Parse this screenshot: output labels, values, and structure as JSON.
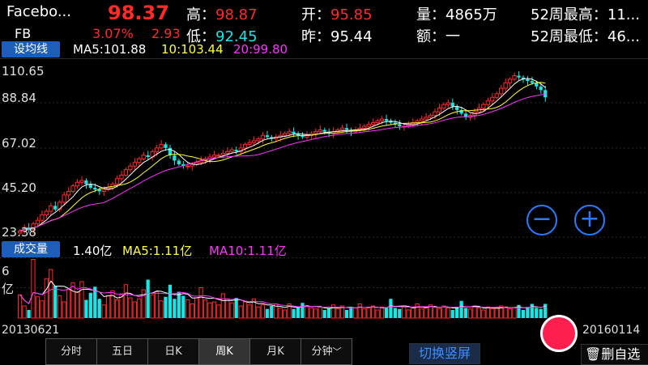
{
  "header": {
    "name": "Facebo...",
    "code": "FB",
    "price": "98.37",
    "change_pct": "3.07%",
    "change": "2.93",
    "high_label": "高：",
    "high": "98.87",
    "low_label": "低：",
    "low": "92.45",
    "open_label": "开：",
    "open": "95.85",
    "prev_label": "昨：",
    "prev": "95.44",
    "vol_label": "量：",
    "vol": "4865万",
    "amt_label": "额：",
    "amt": "一",
    "w52h_label": "52周最高：",
    "w52h": "11...",
    "w52l_label": "52周最低：",
    "w52l": "46..."
  },
  "ma_bar": {
    "button": "设均线",
    "ma5": "MA5:101.88",
    "ma10": "10:103.44",
    "ma20": "20:99.80"
  },
  "vol_bar": {
    "button": "成交量",
    "value": "1.40亿",
    "ma5": "MA5:1.11亿",
    "ma10": "MA10:1.11亿"
  },
  "axis": {
    "price_ticks": [
      "110.65",
      "88.84",
      "67.02",
      "45.20",
      "23.38"
    ],
    "vol_top": "6",
    "vol_unit": "亿",
    "date_start": "20130621",
    "date_end": "20160114"
  },
  "tabs": [
    "分时",
    "五日",
    "日K",
    "周K",
    "月K",
    "分钟"
  ],
  "active_tab": "周K",
  "buttons": {
    "switch": "切换竖屏",
    "delete": "删自选",
    "zoom_out": "−",
    "zoom_in": "+"
  },
  "colors": {
    "up": "#ff2a2a",
    "down": "#17e6e6",
    "ma5": "#ffffff",
    "ma10": "#ffff33",
    "ma20": "#ff33ff",
    "accent": "#1d5fb8"
  },
  "chart_data": {
    "type": "candlestick",
    "title": "",
    "ylim": [
      23.38,
      110.65
    ],
    "x_start": "20130621",
    "x_end": "20160114",
    "close_series": [
      24,
      26,
      25,
      28,
      30,
      33,
      35,
      38,
      36,
      40,
      44,
      46,
      49,
      51,
      52,
      50,
      48,
      47,
      46,
      47,
      48,
      50,
      53,
      55,
      58,
      60,
      62,
      64,
      66,
      65,
      68,
      70,
      72,
      70,
      66,
      63,
      61,
      60,
      60,
      61,
      62,
      63,
      64,
      65,
      66,
      66,
      67,
      68,
      69,
      68,
      70,
      72,
      73,
      74,
      75,
      77,
      76,
      75,
      76,
      77,
      78,
      79,
      78,
      77,
      76,
      77,
      78,
      79,
      80,
      79,
      78,
      79,
      80,
      81,
      80,
      79,
      80,
      81,
      82,
      83,
      84,
      85,
      86,
      85,
      84,
      83,
      82,
      82,
      83,
      84,
      85,
      86,
      87,
      88,
      90,
      92,
      94,
      95,
      93,
      91,
      89,
      87,
      88,
      90,
      92,
      94,
      96,
      98,
      100,
      103,
      106,
      108,
      110,
      109,
      108,
      107,
      106,
      104,
      102,
      98
    ],
    "volume_series": [
      2.3,
      1.2,
      0.8,
      5.8,
      2.1,
      1.7,
      3.9,
      4.8,
      3.2,
      2.2,
      1.6,
      2.8,
      3.5,
      2.6,
      3.6,
      1.8,
      2.5,
      3.1,
      1.9,
      1.3,
      2.2,
      2.7,
      1.8,
      2.4,
      3.3,
      2.0,
      1.6,
      1.9,
      2.8,
      3.8,
      2.3,
      2.6,
      1.7,
      2.1,
      3.3,
      1.9,
      2.6,
      2.2,
      1.8,
      1.4,
      2.0,
      3.0,
      1.8,
      1.5,
      1.6,
      1.3,
      2.4,
      1.9,
      1.5,
      2.0,
      1.2,
      1.6,
      1.3,
      1.9,
      1.1,
      1.3,
      0.9,
      1.2,
      1.4,
      1.0,
      0.8,
      1.4,
      0.9,
      1.1,
      1.5,
      1.2,
      1.0,
      0.9,
      1.1,
      0.8,
      1.0,
      1.3,
      0.9,
      1.2,
      0.8,
      1.1,
      1.0,
      1.4,
      0.9,
      1.0,
      1.2,
      0.8,
      1.1,
      1.0,
      1.9,
      1.0,
      0.9,
      1.2,
      0.8,
      1.1,
      1.4,
      0.9,
      1.0,
      1.3,
      1.1,
      0.9,
      1.2,
      1.0,
      0.8,
      1.1,
      1.7,
      1.0,
      0.9,
      1.2,
      1.0,
      0.8,
      1.1,
      0.9,
      1.0,
      1.2,
      1.1,
      0.9,
      1.0,
      1.3,
      0.8,
      1.1,
      1.4,
      1.0,
      0.9,
      1.4
    ]
  }
}
